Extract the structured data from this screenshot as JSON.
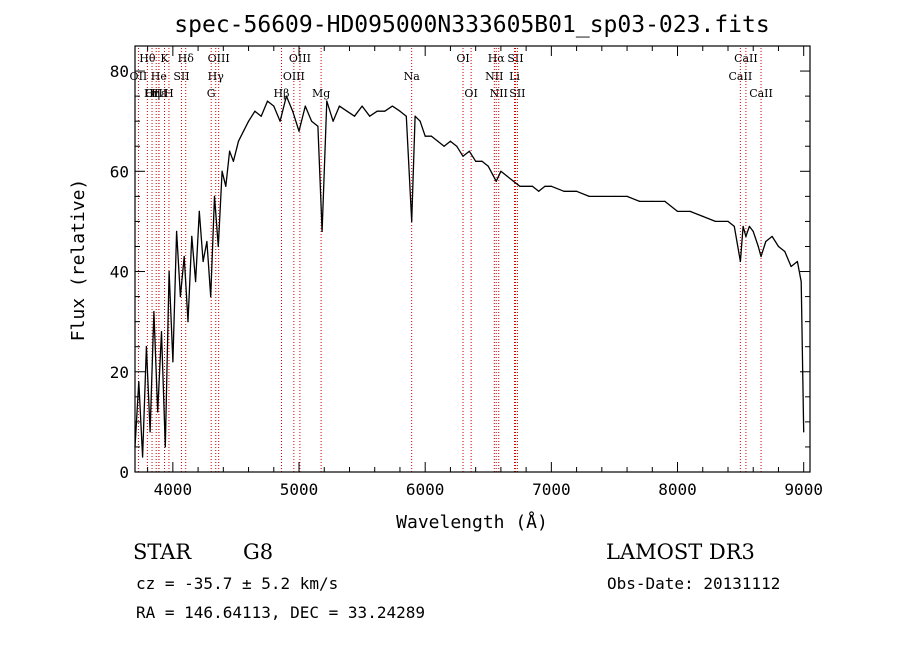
{
  "chart_data": {
    "type": "line",
    "title": "spec-56609-HD095000N333605B01_sp03-023.fits",
    "xlabel": "Wavelength (Å)",
    "ylabel": "Flux (relative)",
    "xlim": [
      3700,
      9050
    ],
    "ylim": [
      0,
      85
    ],
    "xticks": [
      4000,
      5000,
      6000,
      7000,
      8000,
      9000
    ],
    "yticks": [
      0,
      20,
      40,
      60,
      80
    ],
    "grid": false,
    "line_color": "#000000",
    "marker_color": "#cc0000",
    "series": [
      {
        "x": [
          3700,
          3730,
          3760,
          3790,
          3820,
          3850,
          3880,
          3910,
          3940,
          3970,
          4000,
          4030,
          4060,
          4090,
          4120,
          4150,
          4180,
          4210,
          4240,
          4270,
          4300,
          4330,
          4360,
          4390,
          4420,
          4450,
          4480,
          4520,
          4560,
          4600,
          4650,
          4700,
          4750,
          4800,
          4850,
          4900,
          4950,
          5000,
          5050,
          5100,
          5150,
          5183,
          5220,
          5270,
          5320,
          5380,
          5440,
          5500,
          5560,
          5620,
          5680,
          5740,
          5800,
          5850,
          5893,
          5920,
          5960,
          6000,
          6050,
          6100,
          6150,
          6200,
          6250,
          6300,
          6350,
          6400,
          6450,
          6500,
          6563,
          6600,
          6650,
          6700,
          6750,
          6800,
          6850,
          6900,
          6950,
          7000,
          7100,
          7200,
          7300,
          7400,
          7500,
          7600,
          7700,
          7800,
          7900,
          8000,
          8100,
          8200,
          8300,
          8400,
          8450,
          8498,
          8520,
          8542,
          8570,
          8600,
          8640,
          8662,
          8700,
          8750,
          8800,
          8850,
          8900,
          8950,
          8980,
          9000
        ],
        "y": [
          5,
          18,
          3,
          25,
          8,
          32,
          12,
          28,
          5,
          40,
          22,
          48,
          35,
          43,
          30,
          47,
          38,
          52,
          42,
          46,
          35,
          55,
          45,
          60,
          57,
          64,
          62,
          66,
          68,
          70,
          72,
          71,
          74,
          73,
          70,
          75,
          72,
          68,
          73,
          70,
          69,
          48,
          74,
          70,
          73,
          72,
          71,
          73,
          71,
          72,
          72,
          73,
          72,
          71,
          50,
          71,
          70,
          67,
          67,
          66,
          65,
          66,
          65,
          63,
          64,
          62,
          62,
          61,
          58,
          60,
          59,
          58,
          57,
          57,
          57,
          56,
          57,
          57,
          56,
          56,
          55,
          55,
          55,
          55,
          54,
          54,
          54,
          52,
          52,
          51,
          50,
          50,
          49,
          42,
          49,
          47,
          49,
          48,
          45,
          43,
          46,
          47,
          45,
          44,
          41,
          42,
          38,
          8
        ]
      }
    ],
    "lines": [
      {
        "label": "Hθ",
        "x": 3798,
        "row": 0
      },
      {
        "label": "OII",
        "x": 3727,
        "row": 1
      },
      {
        "label": "OIII",
        "x": 3868,
        "row": 2
      },
      {
        "label": "Hε",
        "x": 3890,
        "row": 2
      },
      {
        "label": "He",
        "x": 3889,
        "row": 1
      },
      {
        "label": "K",
        "x": 3934,
        "row": 0
      },
      {
        "label": "H",
        "x": 3969,
        "row": 2
      },
      {
        "label": "Hη",
        "x": 3835,
        "row": 2
      },
      {
        "label": "SII",
        "x": 4068,
        "row": 1
      },
      {
        "label": "Hδ",
        "x": 4102,
        "row": 0
      },
      {
        "label": "OIII",
        "x": 4363,
        "row": 0
      },
      {
        "label": "Hγ",
        "x": 4340,
        "row": 1
      },
      {
        "label": "G",
        "x": 4304,
        "row": 2
      },
      {
        "label": "OIII",
        "x": 5007,
        "row": 0
      },
      {
        "label": "OIII",
        "x": 4959,
        "row": 1
      },
      {
        "label": "Hβ",
        "x": 4861,
        "row": 2
      },
      {
        "label": "Mg",
        "x": 5175,
        "row": 2
      },
      {
        "label": "Na",
        "x": 5893,
        "row": 1
      },
      {
        "label": "OI",
        "x": 6300,
        "row": 0
      },
      {
        "label": "OI",
        "x": 6364,
        "row": 2
      },
      {
        "label": "Hα",
        "x": 6563,
        "row": 0
      },
      {
        "label": "NII",
        "x": 6548,
        "row": 1
      },
      {
        "label": "NII",
        "x": 6583,
        "row": 2
      },
      {
        "label": "SII",
        "x": 6716,
        "row": 0
      },
      {
        "label": "Li",
        "x": 6708,
        "row": 1
      },
      {
        "label": "SII",
        "x": 6731,
        "row": 2
      },
      {
        "label": "CaII",
        "x": 8542,
        "row": 0
      },
      {
        "label": "CaII",
        "x": 8498,
        "row": 1
      },
      {
        "label": "CaII",
        "x": 8662,
        "row": 2
      }
    ]
  },
  "info": {
    "obj_class": "STAR",
    "obj_subclass": "G8",
    "survey": "LAMOST DR3",
    "cz": "cz = -35.7 ± 5.2 km/s",
    "obs_date": "Obs-Date: 20131112",
    "coords": "RA = 146.64113, DEC =  33.24289"
  }
}
